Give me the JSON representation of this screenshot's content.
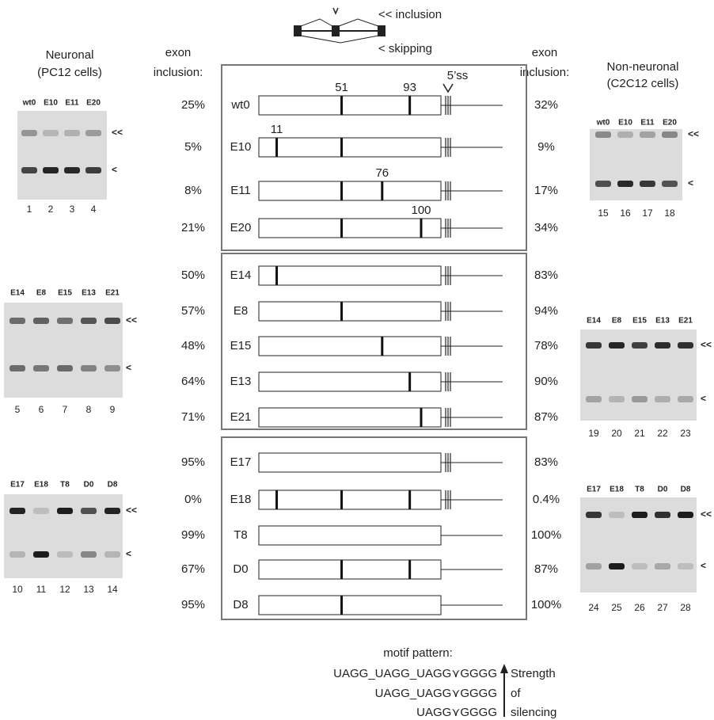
{
  "header": {
    "inclusion_legend": "<< inclusion",
    "skipping_legend": "< skipping",
    "left_heading": [
      "exon",
      "inclusion:"
    ],
    "right_heading": [
      "exon",
      "inclusion:"
    ],
    "ss_label": "5’ss"
  },
  "markers": {
    "upper": "<<",
    "lower": "<"
  },
  "neuronal": {
    "title": [
      "Neuronal",
      "(PC12 cells)"
    ],
    "panels": [
      {
        "lanes": [
          "wt0",
          "E10",
          "E11",
          "E20"
        ],
        "numbers": [
          "1",
          "2",
          "3",
          "4"
        ]
      },
      {
        "lanes": [
          "E14",
          "E8",
          "E15",
          "E13",
          "E21"
        ],
        "numbers": [
          "5",
          "6",
          "7",
          "8",
          "9"
        ]
      },
      {
        "lanes": [
          "E17",
          "E18",
          "T8",
          "D0",
          "D8"
        ],
        "numbers": [
          "10",
          "11",
          "12",
          "13",
          "14"
        ]
      }
    ]
  },
  "non_neuronal": {
    "title": [
      "Non-neuronal",
      "(C2C12 cells)"
    ],
    "panels": [
      {
        "lanes": [
          "wt0",
          "E10",
          "E11",
          "E20"
        ],
        "numbers": [
          "15",
          "16",
          "17",
          "18"
        ]
      },
      {
        "lanes": [
          "E14",
          "E8",
          "E15",
          "E13",
          "E21"
        ],
        "numbers": [
          "19",
          "20",
          "21",
          "22",
          "23"
        ]
      },
      {
        "lanes": [
          "E17",
          "E18",
          "T8",
          "D0",
          "D8"
        ],
        "numbers": [
          "24",
          "25",
          "26",
          "27",
          "28"
        ]
      }
    ]
  },
  "constructs": {
    "panels": [
      [
        {
          "name": "wt0",
          "left": "25%",
          "right": "32%",
          "motifs": [
            51,
            93
          ],
          "labelled": [
            true,
            true
          ],
          "ss": true
        },
        {
          "name": "E10",
          "left": "5%",
          "right": "9%",
          "motifs": [
            11,
            51
          ],
          "labelled": [
            true,
            false
          ],
          "ss": true
        },
        {
          "name": "E11",
          "left": "8%",
          "right": "17%",
          "motifs": [
            51,
            76
          ],
          "labelled": [
            false,
            true
          ],
          "ss": true
        },
        {
          "name": "E20",
          "left": "21%",
          "right": "34%",
          "motifs": [
            51,
            100
          ],
          "labelled": [
            false,
            true
          ],
          "ss": true
        }
      ],
      [
        {
          "name": "E14",
          "left": "50%",
          "right": "83%",
          "motifs": [
            11
          ],
          "labelled": [
            false
          ],
          "ss": true
        },
        {
          "name": "E8",
          "left": "57%",
          "right": "94%",
          "motifs": [
            51
          ],
          "labelled": [
            false
          ],
          "ss": true
        },
        {
          "name": "E15",
          "left": "48%",
          "right": "78%",
          "motifs": [
            76
          ],
          "labelled": [
            false
          ],
          "ss": true
        },
        {
          "name": "E13",
          "left": "64%",
          "right": "90%",
          "motifs": [
            93
          ],
          "labelled": [
            false
          ],
          "ss": true
        },
        {
          "name": "E21",
          "left": "71%",
          "right": "87%",
          "motifs": [
            100
          ],
          "labelled": [
            false
          ],
          "ss": true
        }
      ],
      [
        {
          "name": "E17",
          "left": "95%",
          "right": "83%",
          "motifs": [],
          "labelled": [],
          "ss": true
        },
        {
          "name": "E18",
          "left": "0%",
          "right": "0.4%",
          "motifs": [
            11,
            51,
            93
          ],
          "labelled": [
            false,
            false,
            false
          ],
          "ss": true
        },
        {
          "name": "T8",
          "left": "99%",
          "right": "100%",
          "motifs": [],
          "labelled": [],
          "ss": false
        },
        {
          "name": "D0",
          "left": "67%",
          "right": "87%",
          "motifs": [
            51,
            93
          ],
          "labelled": [
            false,
            false
          ],
          "ss": false
        },
        {
          "name": "D8",
          "left": "95%",
          "right": "100%",
          "motifs": [
            51
          ],
          "labelled": [
            false
          ],
          "ss": false
        }
      ]
    ]
  },
  "footer": {
    "title": "motif pattern:",
    "patterns": [
      "UAGG_UAGG_UAGG⋎GGGG",
      "UAGG_UAGG⋎GGGG",
      "UAGG⋎GGGG"
    ],
    "strength": [
      "Strength",
      "of",
      "silencing"
    ]
  }
}
